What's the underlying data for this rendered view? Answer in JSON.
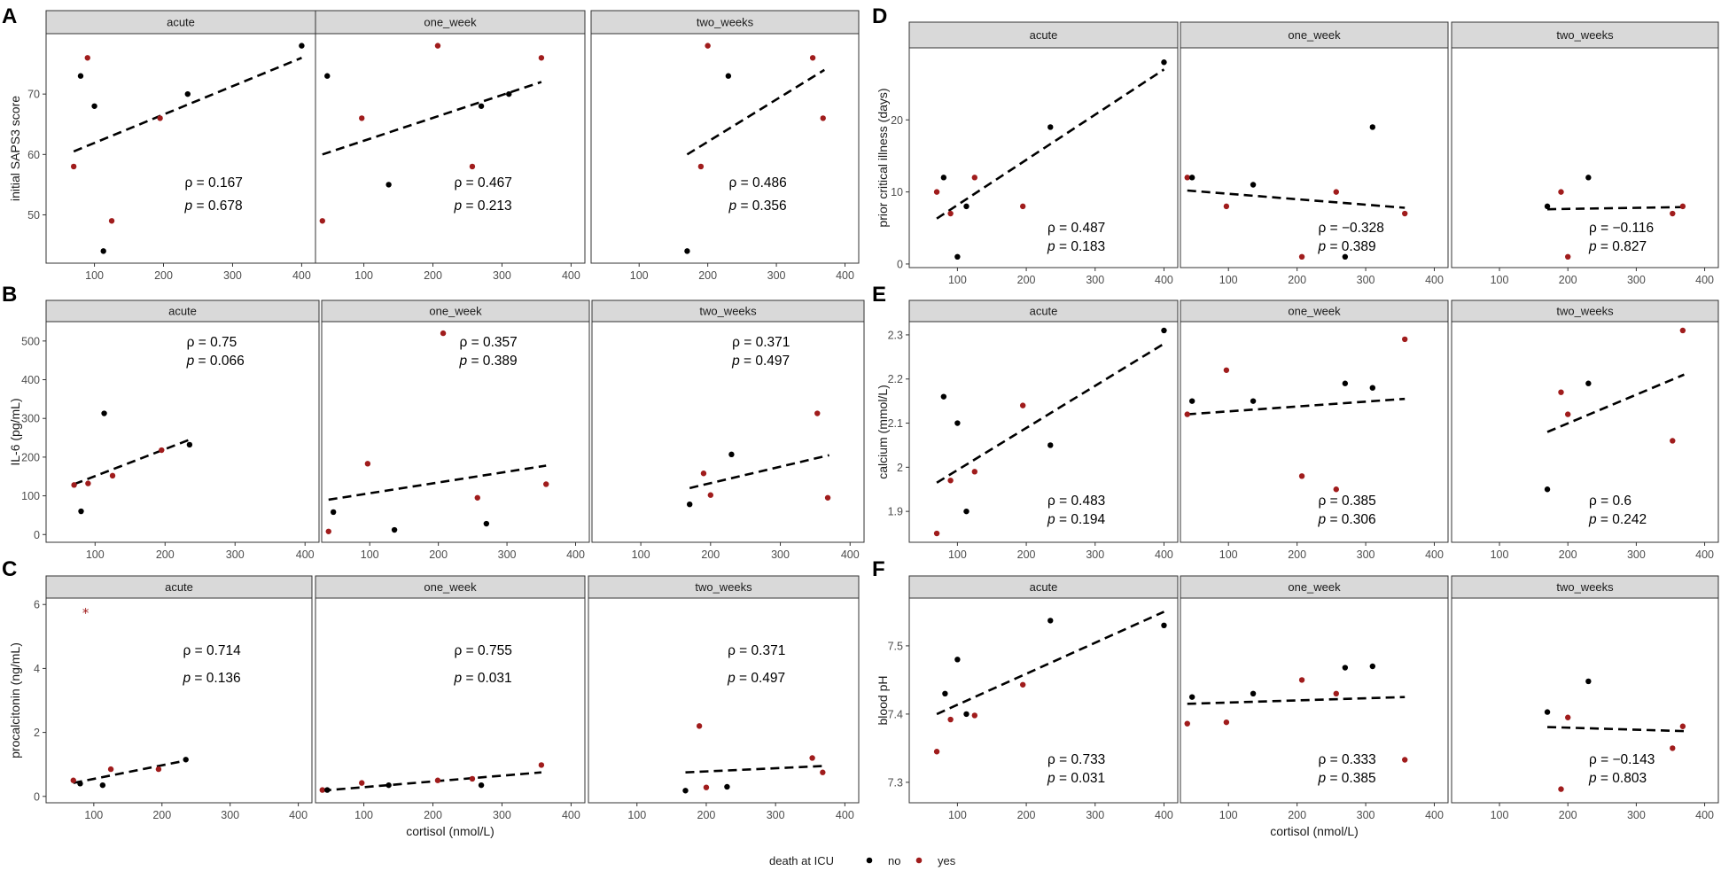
{
  "colors": {
    "no": "#000000",
    "yes": "#a01c1c"
  },
  "legend": {
    "title": "death at ICU",
    "items": [
      {
        "key": "no",
        "label": "no"
      },
      {
        "key": "yes",
        "label": "yes"
      }
    ]
  },
  "chart_data": [
    {
      "panel": "A",
      "type": "scatter",
      "ylabel": "initial SAPS3 score",
      "xlabel": "",
      "xlim": [
        30,
        420
      ],
      "ylim": [
        42,
        80
      ],
      "xticks": [
        100,
        200,
        300,
        400
      ],
      "yticks": [
        50,
        60,
        70
      ],
      "facets": [
        {
          "label": "acute",
          "rho": "0.167",
          "p": "0.678",
          "fit": [
            [
              70,
              60.5
            ],
            [
              400,
              76
            ]
          ],
          "points": [
            [
              70,
              58,
              "yes"
            ],
            [
              80,
              73,
              "no"
            ],
            [
              90,
              76,
              "yes"
            ],
            [
              100,
              68,
              "no"
            ],
            [
              113,
              44,
              "no"
            ],
            [
              125,
              49,
              "yes"
            ],
            [
              195,
              66,
              "yes"
            ],
            [
              235,
              70,
              "no"
            ],
            [
              400,
              78,
              "no"
            ]
          ]
        },
        {
          "label": "one_week",
          "rho": "0.467",
          "p": "0.213",
          "fit": [
            [
              40,
              60
            ],
            [
              357,
              72
            ]
          ],
          "points": [
            [
              40,
              49,
              "yes"
            ],
            [
              47,
              73,
              "no"
            ],
            [
              97,
              66,
              "yes"
            ],
            [
              136,
              55,
              "no"
            ],
            [
              207,
              78,
              "yes"
            ],
            [
              257,
              58,
              "yes"
            ],
            [
              270,
              68,
              "no"
            ],
            [
              310,
              70,
              "no"
            ],
            [
              357,
              76,
              "yes"
            ]
          ]
        },
        {
          "label": "two_weeks",
          "rho": "0.486",
          "p": "0.356",
          "fit": [
            [
              170,
              60
            ],
            [
              370,
              74
            ]
          ],
          "points": [
            [
              170,
              44,
              "no"
            ],
            [
              190,
              58,
              "yes"
            ],
            [
              200,
              78,
              "yes"
            ],
            [
              230,
              73,
              "no"
            ],
            [
              353,
              76,
              "yes"
            ],
            [
              368,
              66,
              "yes"
            ]
          ]
        }
      ]
    },
    {
      "panel": "B",
      "type": "scatter",
      "ylabel": "IL-6 (pg/mL)",
      "xlabel": "",
      "xlim": [
        30,
        420
      ],
      "ylim": [
        -20,
        550
      ],
      "xticks": [
        100,
        200,
        300,
        400
      ],
      "yticks": [
        0,
        100,
        200,
        300,
        400,
        500
      ],
      "facets": [
        {
          "label": "acute",
          "rho": "0.75",
          "p": "0.066",
          "fit": [
            [
              70,
              130
            ],
            [
              235,
              245
            ]
          ],
          "points": [
            [
              70,
              128,
              "yes"
            ],
            [
              80,
              60,
              "no"
            ],
            [
              90,
              132,
              "yes"
            ],
            [
              113,
              313,
              "no"
            ],
            [
              125,
              152,
              "yes"
            ],
            [
              195,
              218,
              "yes"
            ],
            [
              235,
              232,
              "no"
            ]
          ]
        },
        {
          "label": "one_week",
          "rho": "0.357",
          "p": "0.389",
          "fit": [
            [
              40,
              90
            ],
            [
              357,
              178
            ]
          ],
          "points": [
            [
              40,
              8,
              "yes"
            ],
            [
              47,
              58,
              "no"
            ],
            [
              97,
              183,
              "yes"
            ],
            [
              136,
              12,
              "no"
            ],
            [
              207,
              520,
              "yes"
            ],
            [
              257,
              95,
              "yes"
            ],
            [
              270,
              28,
              "no"
            ],
            [
              357,
              130,
              "yes"
            ]
          ]
        },
        {
          "label": "two_weeks",
          "rho": "0.371",
          "p": "0.497",
          "fit": [
            [
              170,
              120
            ],
            [
              370,
              205
            ]
          ],
          "points": [
            [
              170,
              78,
              "no"
            ],
            [
              190,
              158,
              "yes"
            ],
            [
              200,
              102,
              "yes"
            ],
            [
              230,
              207,
              "no"
            ],
            [
              353,
              313,
              "yes"
            ],
            [
              368,
              95,
              "yes"
            ]
          ]
        }
      ]
    },
    {
      "panel": "C",
      "type": "scatter",
      "ylabel": "procalcitonin (ng/mL)",
      "xlabel": "cortisol (nmol/L)",
      "xlim": [
        30,
        420
      ],
      "ylim": [
        -0.2,
        6.2
      ],
      "xticks": [
        100,
        200,
        300,
        400
      ],
      "yticks": [
        0,
        2,
        4,
        6
      ],
      "facets": [
        {
          "label": "acute",
          "rho": "0.714",
          "p": "0.136",
          "fit": [
            [
              70,
              0.42
            ],
            [
              235,
              1.12
            ]
          ],
          "points": [
            [
              70,
              0.5,
              "yes"
            ],
            [
              80,
              0.4,
              "no"
            ],
            [
              113,
              0.35,
              "no"
            ],
            [
              125,
              0.85,
              "yes"
            ],
            [
              195,
              0.85,
              "yes"
            ],
            [
              235,
              1.15,
              "no"
            ]
          ],
          "outliers": [
            [
              88,
              5.75,
              "yes"
            ]
          ]
        },
        {
          "label": "one_week",
          "rho": "0.755",
          "p": "0.031",
          "fit": [
            [
              40,
              0.18
            ],
            [
              357,
              0.75
            ]
          ],
          "points": [
            [
              40,
              0.2,
              "yes"
            ],
            [
              47,
              0.2,
              "no"
            ],
            [
              97,
              0.42,
              "yes"
            ],
            [
              136,
              0.35,
              "no"
            ],
            [
              207,
              0.5,
              "yes"
            ],
            [
              257,
              0.55,
              "yes"
            ],
            [
              270,
              0.35,
              "no"
            ],
            [
              357,
              0.98,
              "yes"
            ]
          ]
        },
        {
          "label": "two_weeks",
          "rho": "0.371",
          "p": "0.497",
          "fit": [
            [
              170,
              0.75
            ],
            [
              370,
              0.95
            ]
          ],
          "points": [
            [
              170,
              0.18,
              "no"
            ],
            [
              190,
              2.2,
              "yes"
            ],
            [
              200,
              0.28,
              "yes"
            ],
            [
              230,
              0.3,
              "no"
            ],
            [
              353,
              1.2,
              "yes"
            ],
            [
              368,
              0.75,
              "yes"
            ]
          ]
        }
      ]
    },
    {
      "panel": "D",
      "type": "scatter",
      "ylabel": "prior critical illness (days)",
      "xlabel": "",
      "xlim": [
        30,
        420
      ],
      "ylim": [
        -0.5,
        30
      ],
      "xticks": [
        100,
        200,
        300,
        400
      ],
      "yticks": [
        0,
        10,
        20
      ],
      "facets": [
        {
          "label": "acute",
          "rho": "0.487",
          "p": "0.183",
          "fit": [
            [
              70,
              6.3
            ],
            [
              400,
              27
            ]
          ],
          "points": [
            [
              70,
              10,
              "yes"
            ],
            [
              80,
              12,
              "no"
            ],
            [
              90,
              7,
              "yes"
            ],
            [
              100,
              1,
              "no"
            ],
            [
              113,
              8,
              "no"
            ],
            [
              125,
              12,
              "yes"
            ],
            [
              195,
              8,
              "yes"
            ],
            [
              235,
              19,
              "no"
            ],
            [
              400,
              28,
              "no"
            ]
          ]
        },
        {
          "label": "one_week",
          "rho": "−0.328",
          "p": "0.389",
          "fit": [
            [
              40,
              10.2
            ],
            [
              357,
              7.8
            ]
          ],
          "points": [
            [
              40,
              12,
              "yes"
            ],
            [
              47,
              12,
              "no"
            ],
            [
              97,
              8,
              "yes"
            ],
            [
              136,
              11,
              "no"
            ],
            [
              207,
              1,
              "yes"
            ],
            [
              257,
              10,
              "yes"
            ],
            [
              270,
              1,
              "no"
            ],
            [
              310,
              19,
              "no"
            ],
            [
              357,
              7,
              "yes"
            ]
          ]
        },
        {
          "label": "two_weeks",
          "rho": "−0.116",
          "p": "0.827",
          "fit": [
            [
              170,
              7.6
            ],
            [
              370,
              7.9
            ]
          ],
          "points": [
            [
              170,
              8,
              "no"
            ],
            [
              190,
              10,
              "yes"
            ],
            [
              200,
              1,
              "yes"
            ],
            [
              230,
              12,
              "no"
            ],
            [
              353,
              7,
              "yes"
            ],
            [
              368,
              8,
              "yes"
            ]
          ]
        }
      ]
    },
    {
      "panel": "E",
      "type": "scatter",
      "ylabel": "calcium (mmol/L)",
      "xlabel": "",
      "xlim": [
        30,
        420
      ],
      "ylim": [
        1.83,
        2.33
      ],
      "xticks": [
        100,
        200,
        300,
        400
      ],
      "yticks": [
        1.9,
        2.0,
        2.1,
        2.2,
        2.3
      ],
      "facets": [
        {
          "label": "acute",
          "rho": "0.483",
          "p": "0.194",
          "fit": [
            [
              70,
              1.965
            ],
            [
              400,
              2.28
            ]
          ],
          "points": [
            [
              70,
              1.85,
              "yes"
            ],
            [
              80,
              2.16,
              "no"
            ],
            [
              90,
              1.97,
              "yes"
            ],
            [
              100,
              2.1,
              "no"
            ],
            [
              113,
              1.9,
              "no"
            ],
            [
              125,
              1.99,
              "yes"
            ],
            [
              195,
              2.14,
              "yes"
            ],
            [
              235,
              2.05,
              "no"
            ],
            [
              400,
              2.31,
              "no"
            ]
          ]
        },
        {
          "label": "one_week",
          "rho": "0.385",
          "p": "0.306",
          "fit": [
            [
              40,
              2.12
            ],
            [
              357,
              2.155
            ]
          ],
          "points": [
            [
              40,
              2.12,
              "yes"
            ],
            [
              47,
              2.15,
              "no"
            ],
            [
              97,
              2.22,
              "yes"
            ],
            [
              136,
              2.15,
              "no"
            ],
            [
              207,
              1.98,
              "yes"
            ],
            [
              257,
              1.95,
              "yes"
            ],
            [
              270,
              2.19,
              "no"
            ],
            [
              310,
              2.18,
              "no"
            ],
            [
              357,
              2.29,
              "yes"
            ]
          ]
        },
        {
          "label": "two_weeks",
          "rho": "0.6",
          "p": "0.242",
          "fit": [
            [
              170,
              2.08
            ],
            [
              370,
              2.21
            ]
          ],
          "points": [
            [
              170,
              1.95,
              "no"
            ],
            [
              190,
              2.17,
              "yes"
            ],
            [
              200,
              2.12,
              "yes"
            ],
            [
              230,
              2.19,
              "no"
            ],
            [
              353,
              2.06,
              "yes"
            ],
            [
              368,
              2.31,
              "yes"
            ]
          ]
        }
      ]
    },
    {
      "panel": "F",
      "type": "scatter",
      "ylabel": "blood pH",
      "xlabel": "cortisol (nmol/L)",
      "xlim": [
        30,
        420
      ],
      "ylim": [
        7.27,
        7.57
      ],
      "xticks": [
        100,
        200,
        300,
        400
      ],
      "yticks": [
        7.3,
        7.4,
        7.5
      ],
      "facets": [
        {
          "label": "acute",
          "rho": "0.733",
          "p": "0.031",
          "fit": [
            [
              70,
              7.4
            ],
            [
              400,
              7.55
            ]
          ],
          "points": [
            [
              70,
              7.345,
              "yes"
            ],
            [
              82,
              7.43,
              "no"
            ],
            [
              90,
              7.392,
              "yes"
            ],
            [
              100,
              7.48,
              "no"
            ],
            [
              113,
              7.4,
              "no"
            ],
            [
              125,
              7.398,
              "yes"
            ],
            [
              195,
              7.443,
              "yes"
            ],
            [
              235,
              7.537,
              "no"
            ],
            [
              400,
              7.53,
              "no"
            ]
          ]
        },
        {
          "label": "one_week",
          "rho": "0.333",
          "p": "0.385",
          "fit": [
            [
              40,
              7.415
            ],
            [
              357,
              7.425
            ]
          ],
          "points": [
            [
              40,
              7.386,
              "yes"
            ],
            [
              47,
              7.425,
              "no"
            ],
            [
              97,
              7.388,
              "yes"
            ],
            [
              136,
              7.43,
              "no"
            ],
            [
              207,
              7.45,
              "yes"
            ],
            [
              257,
              7.43,
              "yes"
            ],
            [
              270,
              7.468,
              "no"
            ],
            [
              310,
              7.47,
              "no"
            ],
            [
              357,
              7.333,
              "yes"
            ]
          ]
        },
        {
          "label": "two_weeks",
          "rho": "−0.143",
          "p": "0.803",
          "fit": [
            [
              170,
              7.381
            ],
            [
              370,
              7.375
            ]
          ],
          "points": [
            [
              170,
              7.403,
              "no"
            ],
            [
              190,
              7.29,
              "yes"
            ],
            [
              200,
              7.395,
              "yes"
            ],
            [
              230,
              7.448,
              "no"
            ],
            [
              353,
              7.35,
              "yes"
            ],
            [
              368,
              7.382,
              "yes"
            ]
          ]
        }
      ]
    }
  ]
}
